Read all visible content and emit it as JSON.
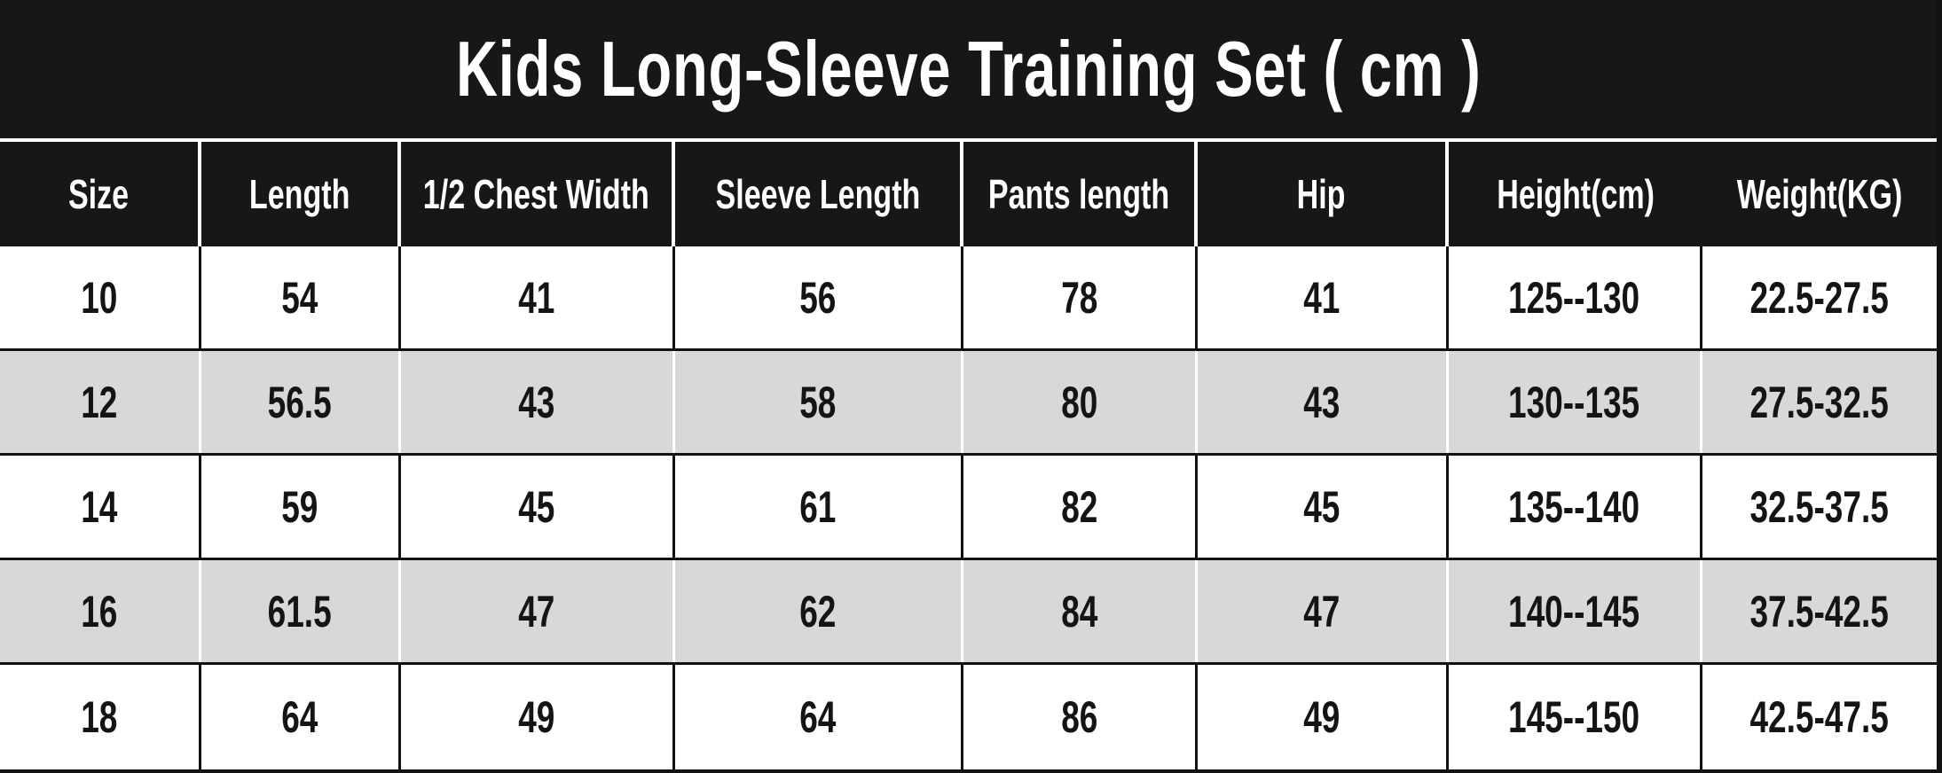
{
  "title": "Kids Long-Sleeve Training Set ( cm )",
  "colors": {
    "band_bg": "#171717",
    "header_text": "#ffffff",
    "row_bg": "#ffffff",
    "row_alt_bg": "#d8d8d8",
    "grid_line": "#111111",
    "body_text": "#141414"
  },
  "table": {
    "columns": [
      "Size",
      "Length",
      "1/2 Chest Width",
      "Sleeve Length",
      "Pants length",
      "Hip",
      "Height(cm)",
      "Weight(KG)"
    ],
    "rows": [
      {
        "cells": [
          "10",
          "54",
          "41",
          "56",
          "78",
          "41",
          "125--130",
          "22.5-27.5"
        ]
      },
      {
        "cells": [
          "12",
          "56.5",
          "43",
          "58",
          "80",
          "43",
          "130--135",
          "27.5-32.5"
        ]
      },
      {
        "cells": [
          "14",
          "59",
          "45",
          "61",
          "82",
          "45",
          "135--140",
          "32.5-37.5"
        ]
      },
      {
        "cells": [
          "16",
          "61.5",
          "47",
          "62",
          "84",
          "47",
          "140--145",
          "37.5-42.5"
        ]
      },
      {
        "cells": [
          "18",
          "64",
          "49",
          "64",
          "86",
          "49",
          "145--150",
          "42.5-47.5"
        ]
      }
    ]
  },
  "chart_data": {
    "type": "table",
    "title": "Kids Long-Sleeve Training Set ( cm )",
    "columns": [
      "Size",
      "Length",
      "1/2 Chest Width",
      "Sleeve Length",
      "Pants length",
      "Hip",
      "Height(cm)",
      "Weight(KG)"
    ],
    "rows": [
      [
        "10",
        "54",
        "41",
        "56",
        "78",
        "41",
        "125--130",
        "22.5-27.5"
      ],
      [
        "12",
        "56.5",
        "43",
        "58",
        "80",
        "43",
        "130--135",
        "27.5-32.5"
      ],
      [
        "14",
        "59",
        "45",
        "61",
        "82",
        "45",
        "135--140",
        "32.5-37.5"
      ],
      [
        "16",
        "61.5",
        "47",
        "62",
        "84",
        "47",
        "140--145",
        "37.5-42.5"
      ],
      [
        "18",
        "64",
        "49",
        "64",
        "86",
        "49",
        "145--150",
        "42.5-47.5"
      ]
    ],
    "layout": {
      "striped_rows": true,
      "header_style": "dark-band"
    }
  }
}
